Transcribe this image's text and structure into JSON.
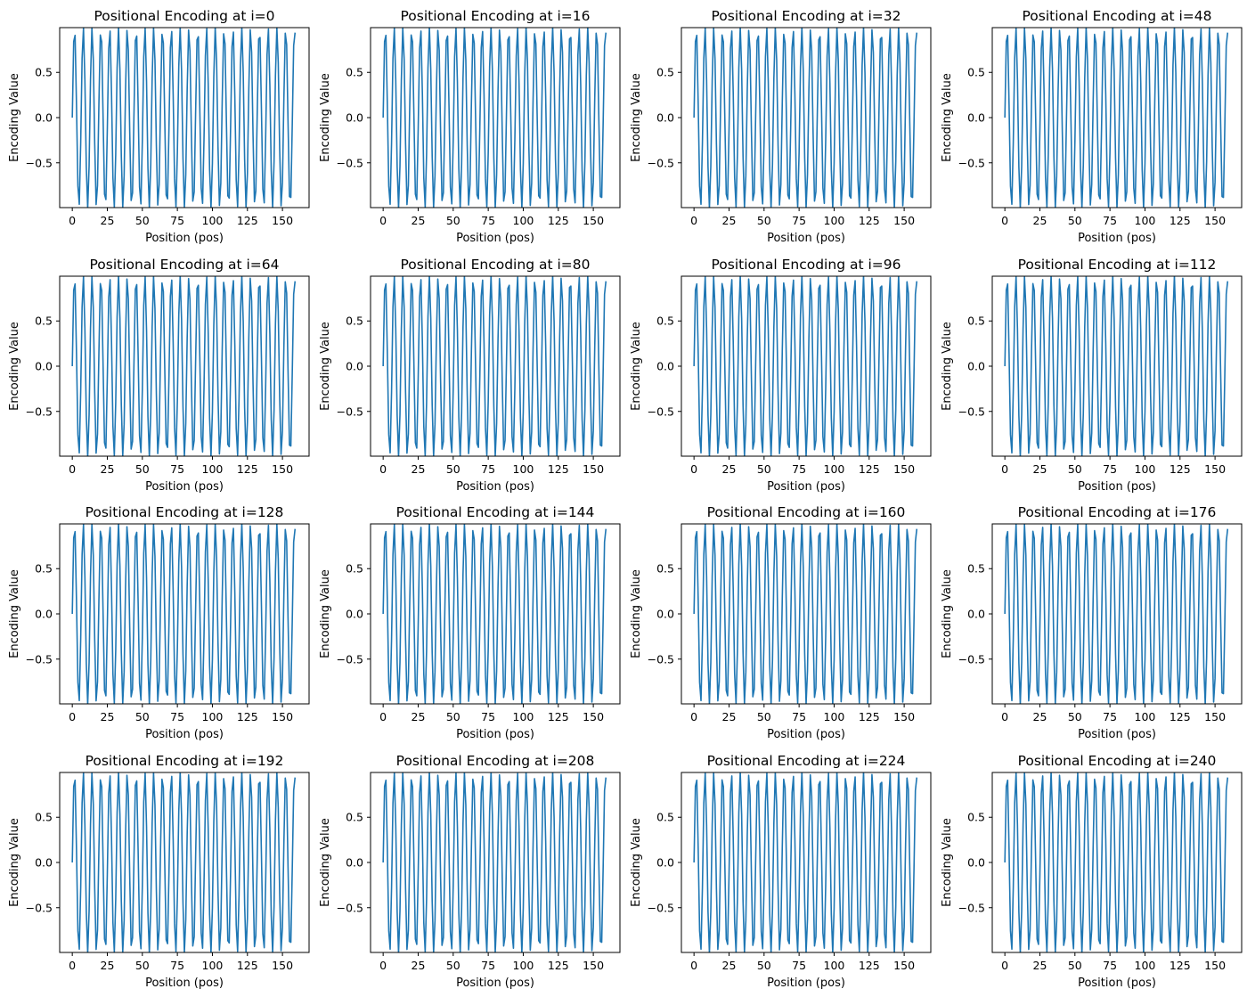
{
  "chart_data": {
    "type": "line",
    "layout": "4x4 grid",
    "xlabel": "Position (pos)",
    "ylabel": "Encoding Value",
    "xlim": [
      -9,
      169
    ],
    "ylim": [
      -0.995,
      0.995
    ],
    "xticks": [
      0,
      25,
      50,
      75,
      100,
      125,
      150
    ],
    "yticks": [
      -0.5,
      0.0,
      0.5
    ],
    "ytick_labels": [
      "−0.5",
      "0.0",
      "0.5"
    ],
    "grid": false,
    "legend": "none",
    "line_color": "#1f77b4",
    "x": {
      "start": 0,
      "end": 159,
      "step": 1
    },
    "signal": {
      "function": "sin",
      "frequency_rad_per_pos": 1.0
    },
    "subplots": [
      {
        "title": "Positional Encoding at i=0"
      },
      {
        "title": "Positional Encoding at i=16"
      },
      {
        "title": "Positional Encoding at i=32"
      },
      {
        "title": "Positional Encoding at i=48"
      },
      {
        "title": "Positional Encoding at i=64"
      },
      {
        "title": "Positional Encoding at i=80"
      },
      {
        "title": "Positional Encoding at i=96"
      },
      {
        "title": "Positional Encoding at i=112"
      },
      {
        "title": "Positional Encoding at i=128"
      },
      {
        "title": "Positional Encoding at i=144"
      },
      {
        "title": "Positional Encoding at i=160"
      },
      {
        "title": "Positional Encoding at i=176"
      },
      {
        "title": "Positional Encoding at i=192"
      },
      {
        "title": "Positional Encoding at i=208"
      },
      {
        "title": "Positional Encoding at i=224"
      },
      {
        "title": "Positional Encoding at i=240"
      }
    ]
  }
}
